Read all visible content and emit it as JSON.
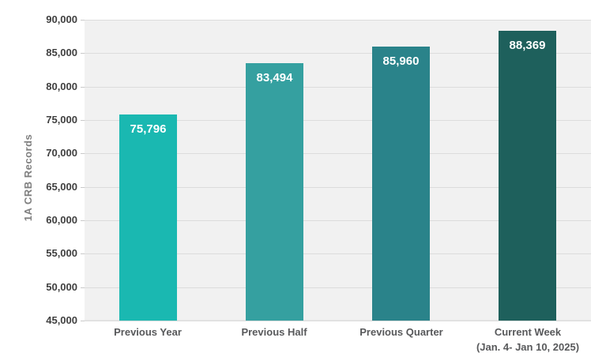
{
  "chart_data": {
    "type": "bar",
    "title": "",
    "xlabel": "",
    "ylabel": "1A CRB Records",
    "categories": [
      {
        "label": "Previous Year",
        "sublabel": ""
      },
      {
        "label": "Previous Half",
        "sublabel": ""
      },
      {
        "label": "Previous Quarter",
        "sublabel": ""
      },
      {
        "label": "Current Week",
        "sublabel": "(Jan. 4- Jan 10, 2025)"
      }
    ],
    "values": [
      75796,
      83494,
      85960,
      88369
    ],
    "value_labels": [
      "75,796",
      "83,494",
      "85,960",
      "88,369"
    ],
    "bar_colors": [
      "#1AB8B1",
      "#35A0A0",
      "#2A838A",
      "#1E605C"
    ],
    "ylim": [
      45000,
      90000
    ],
    "ytick_step": 5000,
    "ytick_labels": [
      "90,000",
      "85,000",
      "80,000",
      "75,000",
      "70,000",
      "65,000",
      "60,000",
      "55,000",
      "50,000",
      "45,000"
    ],
    "grid": true,
    "legend": "none",
    "plot_background": "#F1F1F1",
    "gridline_color": "#DCDCDC",
    "ytick_label_color": "#3F3F3F",
    "xtick_label_color": "#58595B",
    "ylabel_color": "#7F7F7F",
    "value_label_color": "#FFFFFF"
  }
}
